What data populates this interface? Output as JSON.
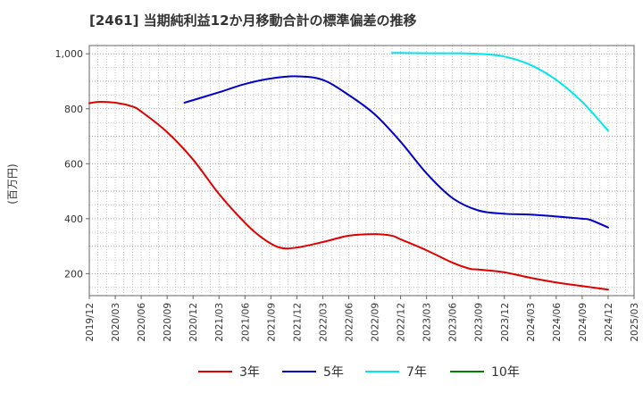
{
  "chart_data": {
    "type": "line",
    "title": "[2461]  当期純利益12か月移動合計の標準偏差の推移",
    "ylabel": "(百万円)",
    "xlabel": "",
    "ylim": [
      120,
      1030
    ],
    "yticks": [
      200,
      400,
      600,
      800,
      1000
    ],
    "ytick_labels": [
      "200",
      "400",
      "600",
      "800",
      "1,000"
    ],
    "x_start": "2019-12",
    "x_end": "2025-03",
    "xtick_labels": [
      "2019/12",
      "2020/03",
      "2020/06",
      "2020/09",
      "2020/12",
      "2021/03",
      "2021/06",
      "2021/09",
      "2021/12",
      "2022/03",
      "2022/06",
      "2022/09",
      "2022/12",
      "2023/03",
      "2023/06",
      "2023/09",
      "2023/12",
      "2024/03",
      "2024/06",
      "2024/09",
      "2024/12",
      "2025/03"
    ],
    "grid": true,
    "legend_position": "bottom",
    "series": [
      {
        "name": "3年",
        "color": "#e00000",
        "x": [
          "2019/12",
          "2020/01",
          "2020/03",
          "2020/05",
          "2020/06",
          "2020/09",
          "2020/12",
          "2021/03",
          "2021/06",
          "2021/08",
          "2021/10",
          "2021/12",
          "2022/03",
          "2022/06",
          "2022/09",
          "2022/11",
          "2022/12",
          "2023/03",
          "2023/06",
          "2023/08",
          "2023/09",
          "2023/12",
          "2024/03",
          "2024/06",
          "2024/09",
          "2024/12"
        ],
        "values": [
          820,
          825,
          822,
          808,
          790,
          715,
          615,
          490,
          385,
          330,
          295,
          295,
          315,
          338,
          344,
          338,
          325,
          285,
          240,
          218,
          215,
          205,
          185,
          168,
          155,
          142
        ]
      },
      {
        "name": "5年",
        "color": "#0000cc",
        "x": [
          "2020/11",
          "2021/03",
          "2021/06",
          "2021/09",
          "2021/12",
          "2022/03",
          "2022/06",
          "2022/09",
          "2022/12",
          "2023/03",
          "2023/06",
          "2023/09",
          "2023/12",
          "2024/03",
          "2024/06",
          "2024/09",
          "2024/10",
          "2024/12"
        ],
        "values": [
          822,
          860,
          890,
          910,
          918,
          905,
          850,
          780,
          680,
          565,
          475,
          430,
          418,
          415,
          408,
          400,
          395,
          368
        ]
      },
      {
        "name": "7年",
        "color": "#00e5ee",
        "x": [
          "2022/11",
          "2022/12",
          "2023/03",
          "2023/06",
          "2023/09",
          "2023/12",
          "2024/03",
          "2024/06",
          "2024/09",
          "2024/12"
        ],
        "values": [
          1003,
          1003,
          1002,
          1002,
          1000,
          990,
          960,
          905,
          825,
          720
        ]
      },
      {
        "name": "10年",
        "color": "#008000",
        "x": [],
        "values": []
      }
    ]
  }
}
